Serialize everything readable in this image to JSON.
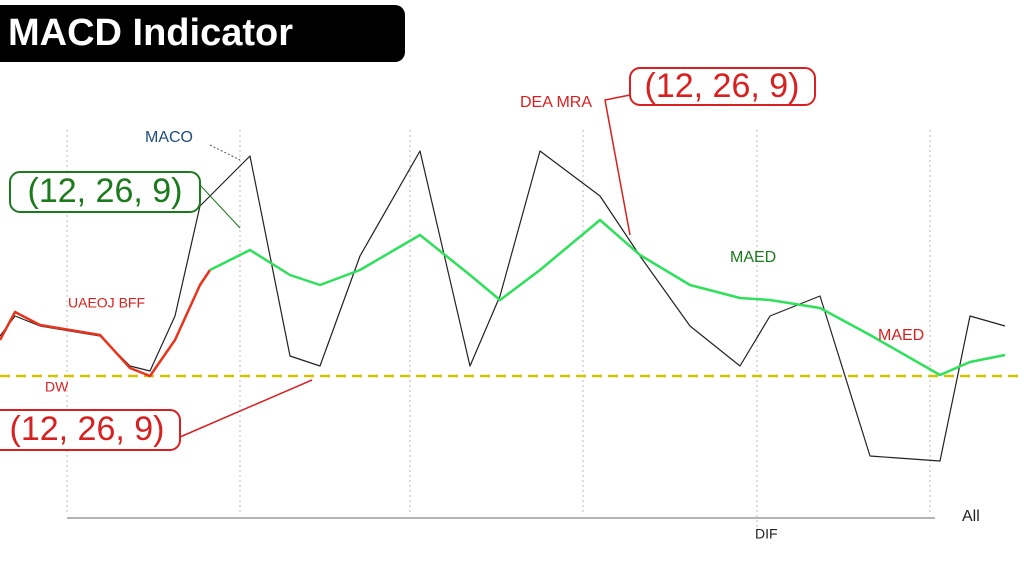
{
  "chart_data": {
    "type": "line",
    "title": "MACD Indicator",
    "annotations": [
      "MACO",
      "(12, 26, 9)",
      "DEA MRA",
      "(12, 26, 9)",
      "MAED",
      "MAED",
      "UAEOJ BFF",
      "DW",
      "(12, 26, 9)",
      "DIF",
      "All"
    ],
    "x": [
      0,
      15,
      40,
      70,
      100,
      130,
      150,
      175,
      200,
      210,
      250,
      290,
      320,
      360,
      420,
      470,
      500,
      540,
      600,
      640,
      690,
      740,
      770,
      820,
      870,
      940,
      970,
      1005
    ],
    "xlim": [
      0,
      1010
    ],
    "ylim": [
      -200,
      250
    ],
    "zero_line": {
      "value": 0,
      "color": "#d4c200"
    },
    "series": [
      {
        "color": "#222222",
        "values": [
          40,
          60,
          50,
          45,
          40,
          10,
          5,
          60,
          170,
          180,
          220,
          20,
          10,
          120,
          225,
          10,
          80,
          225,
          180,
          120,
          50,
          10,
          60,
          80,
          -80,
          -85,
          60,
          50
        ]
      },
      {
        "color": "#e8341c",
        "values": [
          36,
          64,
          51,
          46,
          41,
          8,
          0,
          36,
          91,
          106,
          null,
          null,
          null,
          null,
          null,
          null,
          null,
          null,
          null,
          null,
          null,
          null,
          null,
          null,
          null,
          null,
          null,
          null
        ]
      },
      {
        "color": "#2ee05a",
        "values": [
          null,
          null,
          null,
          null,
          null,
          null,
          null,
          null,
          null,
          106,
          126,
          101,
          91,
          106,
          141,
          101,
          76,
          106,
          156,
          121,
          91,
          78,
          76,
          68,
          41,
          1,
          14,
          21
        ]
      }
    ]
  }
}
